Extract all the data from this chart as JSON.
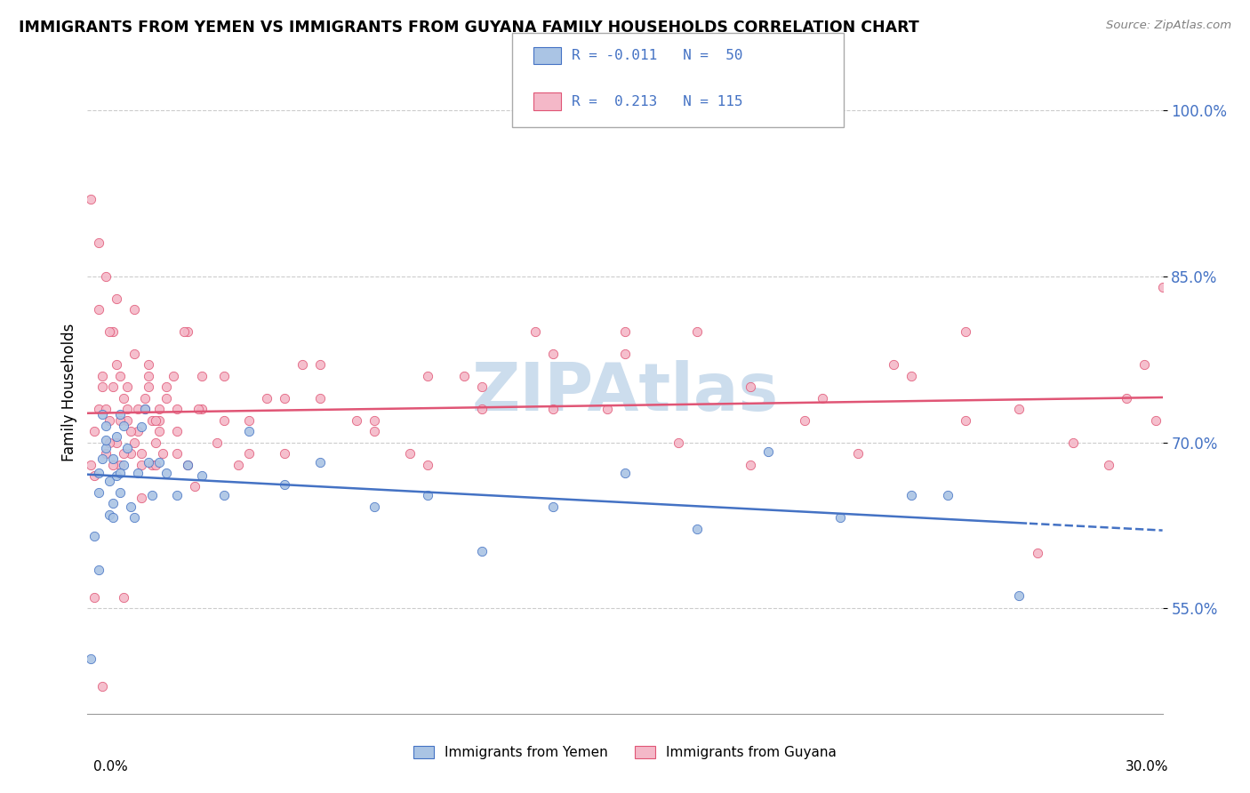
{
  "title": "IMMIGRANTS FROM YEMEN VS IMMIGRANTS FROM GUYANA FAMILY HOUSEHOLDS CORRELATION CHART",
  "source": "Source: ZipAtlas.com",
  "ylabel": "Family Households",
  "color_yemen": "#aac4e4",
  "color_guyana": "#f4b8c8",
  "trend_color_yemen": "#4472c4",
  "trend_color_guyana": "#e05575",
  "xlim": [
    0.0,
    0.3
  ],
  "ylim": [
    0.455,
    1.035
  ],
  "yticks": [
    0.55,
    0.7,
    0.85,
    1.0
  ],
  "ytick_labels": [
    "55.0%",
    "70.0%",
    "85.0%",
    "100.0%"
  ],
  "r_yemen": -0.011,
  "n_yemen": 50,
  "r_guyana": 0.213,
  "n_guyana": 115,
  "watermark_color": "#ccdded",
  "yemen_x": [
    0.001,
    0.002,
    0.003,
    0.003,
    0.004,
    0.004,
    0.005,
    0.005,
    0.006,
    0.006,
    0.007,
    0.007,
    0.008,
    0.008,
    0.009,
    0.009,
    0.01,
    0.01,
    0.011,
    0.012,
    0.013,
    0.014,
    0.015,
    0.016,
    0.017,
    0.018,
    0.02,
    0.022,
    0.025,
    0.028,
    0.032,
    0.038,
    0.045,
    0.055,
    0.065,
    0.08,
    0.095,
    0.11,
    0.13,
    0.15,
    0.17,
    0.19,
    0.21,
    0.23,
    0.003,
    0.005,
    0.007,
    0.009,
    0.24,
    0.26
  ],
  "yemen_y": [
    0.505,
    0.615,
    0.585,
    0.655,
    0.685,
    0.725,
    0.695,
    0.715,
    0.635,
    0.665,
    0.645,
    0.685,
    0.705,
    0.67,
    0.655,
    0.725,
    0.715,
    0.68,
    0.695,
    0.642,
    0.632,
    0.672,
    0.714,
    0.73,
    0.682,
    0.652,
    0.682,
    0.672,
    0.652,
    0.68,
    0.67,
    0.652,
    0.71,
    0.662,
    0.682,
    0.642,
    0.652,
    0.602,
    0.642,
    0.672,
    0.622,
    0.692,
    0.632,
    0.652,
    0.672,
    0.702,
    0.632,
    0.672,
    0.652,
    0.562
  ],
  "guyana_x": [
    0.001,
    0.002,
    0.003,
    0.004,
    0.005,
    0.006,
    0.007,
    0.008,
    0.009,
    0.01,
    0.011,
    0.012,
    0.013,
    0.014,
    0.015,
    0.016,
    0.017,
    0.018,
    0.019,
    0.02,
    0.022,
    0.025,
    0.028,
    0.032,
    0.038,
    0.045,
    0.055,
    0.065,
    0.08,
    0.095,
    0.11,
    0.13,
    0.15,
    0.002,
    0.003,
    0.004,
    0.005,
    0.006,
    0.007,
    0.008,
    0.009,
    0.01,
    0.011,
    0.012,
    0.013,
    0.014,
    0.015,
    0.016,
    0.017,
    0.018,
    0.019,
    0.02,
    0.022,
    0.025,
    0.028,
    0.032,
    0.038,
    0.045,
    0.055,
    0.065,
    0.08,
    0.095,
    0.11,
    0.13,
    0.15,
    0.17,
    0.001,
    0.003,
    0.005,
    0.007,
    0.009,
    0.011,
    0.013,
    0.015,
    0.017,
    0.019,
    0.021,
    0.024,
    0.027,
    0.031,
    0.036,
    0.042,
    0.05,
    0.06,
    0.075,
    0.09,
    0.105,
    0.125,
    0.145,
    0.165,
    0.185,
    0.205,
    0.225,
    0.245,
    0.265,
    0.185,
    0.2,
    0.215,
    0.23,
    0.245,
    0.26,
    0.275,
    0.285,
    0.29,
    0.295,
    0.298,
    0.3,
    0.002,
    0.004,
    0.006,
    0.008,
    0.01,
    0.02,
    0.025,
    0.03
  ],
  "guyana_y": [
    0.68,
    0.71,
    0.73,
    0.76,
    0.69,
    0.72,
    0.75,
    0.7,
    0.68,
    0.74,
    0.72,
    0.69,
    0.82,
    0.71,
    0.65,
    0.73,
    0.76,
    0.68,
    0.7,
    0.72,
    0.74,
    0.71,
    0.68,
    0.73,
    0.76,
    0.72,
    0.69,
    0.74,
    0.71,
    0.76,
    0.73,
    0.78,
    0.8,
    0.67,
    0.82,
    0.75,
    0.73,
    0.7,
    0.68,
    0.77,
    0.72,
    0.69,
    0.75,
    0.71,
    0.78,
    0.73,
    0.69,
    0.74,
    0.77,
    0.72,
    0.68,
    0.71,
    0.75,
    0.73,
    0.8,
    0.76,
    0.72,
    0.69,
    0.74,
    0.77,
    0.72,
    0.68,
    0.75,
    0.73,
    0.78,
    0.8,
    0.92,
    0.88,
    0.85,
    0.8,
    0.76,
    0.73,
    0.7,
    0.68,
    0.75,
    0.72,
    0.69,
    0.76,
    0.8,
    0.73,
    0.7,
    0.68,
    0.74,
    0.77,
    0.72,
    0.69,
    0.76,
    0.8,
    0.73,
    0.7,
    0.68,
    0.74,
    0.77,
    0.72,
    0.6,
    0.75,
    0.72,
    0.69,
    0.76,
    0.8,
    0.73,
    0.7,
    0.68,
    0.74,
    0.77,
    0.72,
    0.84,
    0.56,
    0.48,
    0.8,
    0.83,
    0.56,
    0.73,
    0.69,
    0.66
  ]
}
